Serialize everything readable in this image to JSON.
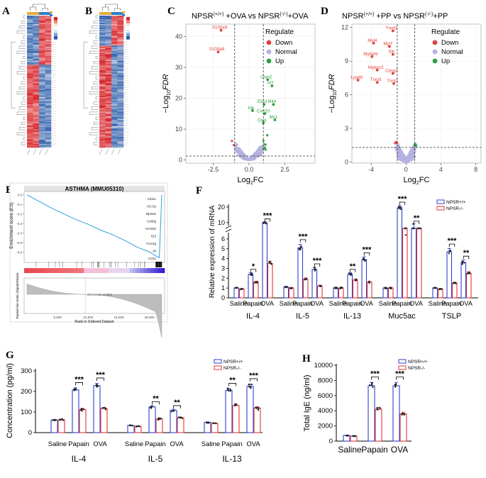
{
  "colors": {
    "down": "#e0413a",
    "normal": "#b5b1e0",
    "up": "#2e9e3e",
    "wt": "#2f3fd0",
    "ko": "#e03535",
    "heat_hi": "#d8262b",
    "heat_lo": "#2a5ba8",
    "gsea": "#2ea3d6"
  },
  "panels": {
    "A": "A",
    "B": "B",
    "C": "C",
    "D": "D",
    "E": "E",
    "F": "F",
    "G": "G",
    "H": "H"
  },
  "chart_data": [
    {
      "id": "A",
      "type": "heatmap",
      "title": "",
      "columns": [
        "",
        "",
        "",
        ""
      ],
      "note": "clustered expression heatmap, high (red) / low (blue)"
    },
    {
      "id": "B",
      "type": "heatmap",
      "title": "",
      "columns": [
        "",
        "",
        "",
        ""
      ],
      "note": "clustered expression heatmap, high (red) / low (blue)"
    },
    {
      "id": "C",
      "type": "scatter",
      "title": "NPSR(+/+) +OVA vs NPSR(-/-)+OVA",
      "xlabel": "Log2FC",
      "ylabel": "-Log10FDR",
      "xlim": [
        -4.4,
        4.6
      ],
      "ylim": [
        -1,
        44
      ],
      "xticks": [
        -2.5,
        0.0,
        2.5
      ],
      "yticks": [
        0,
        10,
        20,
        30,
        40
      ],
      "xtick_labels": [
        "-2.5",
        "0.0",
        "2.5"
      ],
      "ytick_labels": [
        "0",
        "10",
        "20",
        "30",
        "40"
      ],
      "vlines": [
        -1,
        1
      ],
      "hline": 1.3,
      "legend": {
        "title": "Regulate",
        "entries": [
          "Down",
          "Normal",
          "Up"
        ]
      },
      "labels": [
        {
          "text": "S100a9",
          "x": -1.95,
          "y": 42
        },
        {
          "text": "S100a8",
          "x": -2.15,
          "y": 35
        },
        {
          "text": "Osm2",
          "x": 1.3,
          "y": 26
        },
        {
          "text": "Irf7",
          "x": 1.6,
          "y": 24
        },
        {
          "text": "Ebp1",
          "x": 1.05,
          "y": 18
        },
        {
          "text": "Ifi44",
          "x": 1.7,
          "y": 18
        },
        {
          "text": "Ide",
          "x": 0.25,
          "y": 16
        },
        {
          "text": "Cxcl10",
          "x": 1.1,
          "y": 15
        },
        {
          "text": "Mx1",
          "x": 1.8,
          "y": 13
        },
        {
          "text": "Oasl",
          "x": 1.0,
          "y": 12
        }
      ]
    },
    {
      "id": "D",
      "type": "scatter",
      "title": "NPSR(+/+) +PP vs NPSR(-/-)+PP",
      "xlabel": "Log2FC",
      "ylabel": "-Log10FDR",
      "xlim": [
        -6.2,
        8.6
      ],
      "ylim": [
        -0.1,
        12.3
      ],
      "xticks": [
        -4,
        0,
        4,
        8
      ],
      "yticks": [
        0,
        3,
        6,
        9,
        12
      ],
      "xtick_labels": [
        "-4",
        "0",
        "4",
        "8"
      ],
      "ytick_labels": [
        "0",
        "3",
        "6",
        "9",
        "12"
      ],
      "vlines": [
        -1,
        1
      ],
      "hline": 1.3,
      "legend": {
        "title": "Regulate",
        "entries": [
          "Down",
          "Normal",
          "Up"
        ]
      },
      "labels": [
        {
          "text": "Tnnt3",
          "x": -1.5,
          "y": 11.7
        },
        {
          "text": "Myl4",
          "x": -3.7,
          "y": 10.6
        },
        {
          "text": "Myl7",
          "x": -1.9,
          "y": 10.3
        },
        {
          "text": "Sln",
          "x": -1.5,
          "y": 9.6
        },
        {
          "text": "Mybphl",
          "x": -3.9,
          "y": 9.4
        },
        {
          "text": "Mybpc3",
          "x": -3.3,
          "y": 8.2
        },
        {
          "text": "Casq2",
          "x": -1.5,
          "y": 7.9
        },
        {
          "text": "Lypd8",
          "x": -5.5,
          "y": 7.3
        },
        {
          "text": "Tnni3",
          "x": -3.3,
          "y": 7.1
        },
        {
          "text": "Tnnt2",
          "x": -1.4,
          "y": 7.0
        }
      ]
    },
    {
      "id": "E",
      "type": "line",
      "title": "ASTHMA (MMU05310)",
      "ylabel": "Enrichment score (ES)",
      "ylabel2": "Ranked list metric (Signal2Noise)",
      "xlabel": "Rank in Ordered Dataset",
      "xticks": [
        5000,
        10000,
        15000,
        20000
      ],
      "xtick_labels": [
        "5,000",
        "10,000",
        "15,000",
        "20,000"
      ],
      "yticks": [
        0.0,
        -0.1,
        -0.2,
        -0.3,
        -0.4,
        -0.5,
        -0.6
      ],
      "ytick_labels": [
        "0.0",
        "-0.1",
        "-0.2",
        "-0.3",
        "-0.4",
        "-0.5",
        "-0.6"
      ],
      "x": [
        0,
        2000,
        4000,
        6000,
        8000,
        10000,
        12000,
        14000,
        16000,
        18000,
        20000,
        21000,
        21600,
        22000
      ],
      "values": [
        0.0,
        -0.07,
        -0.14,
        -0.2,
        -0.26,
        -0.31,
        -0.37,
        -0.42,
        -0.48,
        -0.55,
        -0.6,
        -0.64,
        -0.66,
        0.0
      ],
      "genes": [
        "Cd111",
        "H2-Oa",
        "Mpl4a2",
        "Cd40g",
        "H2-Eb2",
        "Il13",
        "Fcer1g",
        "Il4",
        "Ccl11"
      ],
      "annotation": "Zero cross at 9511"
    },
    {
      "id": "F",
      "type": "bar",
      "ylabel": "Relative expression of mRNA",
      "groups": [
        "IL-4",
        "IL-5",
        "IL-13",
        "Muc5ac",
        "TSLP"
      ],
      "categories": [
        "Saline",
        "Papain",
        "OVA"
      ],
      "yticks": [
        0,
        1,
        2,
        3,
        4,
        5,
        6,
        10,
        20
      ],
      "ytick_labels": [
        "0",
        "1",
        "2",
        "3",
        "4",
        "5",
        "6",
        "10",
        "20"
      ],
      "legend": {
        "entries": [
          "NPSR+/+",
          "NPSR-/-"
        ]
      },
      "series": [
        {
          "name": "NPSR+/+",
          "values": [
            [
              1.0,
              2.4,
              9.8
            ],
            [
              1.1,
              5.1,
              2.9
            ],
            [
              1.0,
              2.4,
              3.9
            ],
            [
              1.0,
              19.5,
              8.5
            ],
            [
              1.0,
              4.7,
              3.6
            ]
          ]
        },
        {
          "name": "NPSR-/-",
          "values": [
            [
              0.9,
              1.6,
              3.5
            ],
            [
              1.0,
              1.9,
              1.2
            ],
            [
              1.0,
              1.8,
              1.6
            ],
            [
              1.0,
              6.6,
              7.2
            ],
            [
              0.9,
              1.5,
              2.5
            ]
          ]
        }
      ],
      "sig": [
        [
          "",
          "*",
          "***"
        ],
        [
          "",
          "***",
          "***"
        ],
        [
          "",
          "**",
          "***"
        ],
        [
          "",
          "***",
          "**"
        ],
        [
          "",
          "***",
          "**"
        ]
      ]
    },
    {
      "id": "G",
      "type": "bar",
      "ylabel": "Concentration (pg/ml)",
      "groups": [
        "IL-4",
        "IL-5",
        "IL-13"
      ],
      "categories": [
        "Saline",
        "Papain",
        "OVA"
      ],
      "ylim": [
        0,
        300
      ],
      "yticks": [
        0,
        100,
        200,
        300
      ],
      "ytick_labels": [
        "0",
        "100",
        "200",
        "300"
      ],
      "legend": {
        "entries": [
          "NPSR+/+",
          "NPSR-/-"
        ]
      },
      "series": [
        {
          "name": "NPSR+/+",
          "values": [
            [
              60,
              208,
              228
            ],
            [
              35,
              125,
              108
            ],
            [
              50,
              205,
              225
            ]
          ]
        },
        {
          "name": "NPSR-/-",
          "values": [
            [
              63,
              112,
              117
            ],
            [
              31,
              67,
              72
            ],
            [
              45,
              132,
              120
            ]
          ]
        }
      ],
      "sig": [
        [
          "",
          "***",
          "***"
        ],
        [
          "",
          "**",
          "**"
        ],
        [
          "",
          "**",
          "***"
        ]
      ]
    },
    {
      "id": "H",
      "type": "bar",
      "ylabel": "Total IgE (ng/ml)",
      "categories": [
        "Saline",
        "Papain",
        "OVA"
      ],
      "ylim": [
        0,
        10000
      ],
      "yticks": [
        0,
        2000,
        4000,
        6000,
        8000,
        10000
      ],
      "ytick_labels": [
        "0",
        "2000",
        "4000",
        "6000",
        "8000",
        "10000"
      ],
      "legend": {
        "entries": [
          "NPSR+/+",
          "NPSR-/-"
        ]
      },
      "series": [
        {
          "name": "NPSR+/+",
          "values": [
            750,
            7300,
            7300
          ]
        },
        {
          "name": "NPSR-/-",
          "values": [
            650,
            4200,
            3600
          ]
        }
      ],
      "sig": [
        "",
        "***",
        "***"
      ]
    }
  ]
}
